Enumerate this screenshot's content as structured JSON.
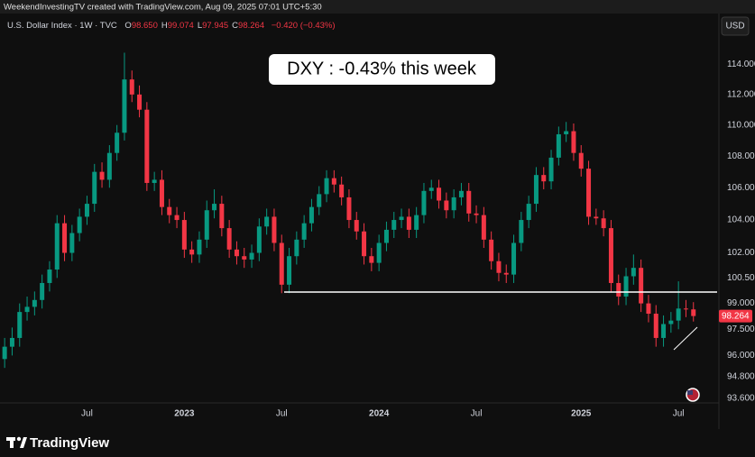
{
  "header": {
    "credit": "WeekendInvestingTV created with TradingView.com, Aug 09, 2025 07:01 UTC+5:30"
  },
  "legend": {
    "symbol": "U.S. Dollar Index · 1W · TVC",
    "ohlc": [
      {
        "label": "O",
        "value": "98.650"
      },
      {
        "label": "H",
        "value": "99.074"
      },
      {
        "label": "L",
        "value": "97.945"
      },
      {
        "label": "C",
        "value": "98.264"
      }
    ],
    "change": "−0.420 (−0.43%)"
  },
  "currency": "USD",
  "logo": "TradingView",
  "chart_data": {
    "type": "candlestick",
    "title": "DXY : -0.43% this week",
    "up_color": "#089981",
    "down_color": "#f23645",
    "log_scale": true,
    "grid": false,
    "ylim": [
      93.2,
      117.3
    ],
    "yticks": [
      {
        "value": 114,
        "label": "114.000"
      },
      {
        "value": 112,
        "label": "112.000"
      },
      {
        "value": 110,
        "label": "110.000"
      },
      {
        "value": 108,
        "label": "108.000"
      },
      {
        "value": 106,
        "label": "106.000"
      },
      {
        "value": 104,
        "label": "104.000"
      },
      {
        "value": 102,
        "label": "102.000"
      },
      {
        "value": 100.5,
        "label": "100.500"
      },
      {
        "value": 99,
        "label": "99.000"
      },
      {
        "value": 97.5,
        "label": "97.500"
      },
      {
        "value": 96,
        "label": "96.000"
      },
      {
        "value": 94.8,
        "label": "94.800"
      },
      {
        "value": 93.6,
        "label": "93.600"
      }
    ],
    "categories": [
      null,
      null,
      null,
      null,
      null,
      null,
      null,
      null,
      null,
      null,
      null,
      "Jul",
      null,
      null,
      null,
      null,
      null,
      null,
      null,
      null,
      null,
      null,
      null,
      null,
      "2023",
      null,
      null,
      null,
      null,
      null,
      null,
      null,
      null,
      null,
      null,
      null,
      null,
      "Jul",
      null,
      null,
      null,
      null,
      null,
      null,
      null,
      null,
      null,
      null,
      null,
      null,
      "2024",
      null,
      null,
      null,
      null,
      null,
      null,
      null,
      null,
      null,
      null,
      null,
      null,
      "Jul",
      null,
      null,
      null,
      null,
      null,
      null,
      null,
      null,
      null,
      null,
      null,
      null,
      null,
      "2025",
      null,
      null,
      null,
      null,
      null,
      null,
      null,
      null,
      null,
      null,
      null,
      null,
      "Jul",
      null,
      null
    ],
    "open": [
      95.8,
      96.5,
      97.0,
      98.5,
      98.8,
      99.2,
      100.2,
      101.0,
      103.8,
      102.0,
      103.2,
      104.2,
      105.0,
      107.0,
      106.5,
      108.2,
      109.5,
      113.0,
      112.0,
      111.0,
      106.3,
      106.5,
      104.8,
      104.3,
      104.0,
      102.2,
      101.9,
      102.8,
      104.6,
      105.0,
      103.5,
      102.2,
      101.8,
      101.6,
      102.0,
      103.6,
      104.2,
      102.6,
      100.1,
      101.8,
      102.8,
      103.8,
      104.8,
      105.6,
      106.6,
      106.2,
      105.4,
      104.0,
      103.3,
      101.8,
      101.4,
      102.6,
      103.4,
      104.0,
      104.2,
      103.4,
      104.3,
      105.8,
      106.0,
      105.2,
      104.6,
      105.4,
      105.8,
      104.4,
      104.3,
      102.8,
      101.5,
      100.8,
      100.7,
      102.6,
      104.0,
      105.0,
      106.8,
      106.4,
      107.9,
      109.4,
      109.6,
      108.2,
      107.2,
      104.2,
      104.1,
      103.5,
      100.2,
      99.4,
      100.6,
      101.1,
      99.0,
      98.4,
      97.0,
      97.8,
      98.0,
      98.7,
      98.65
    ],
    "high": [
      97.0,
      97.6,
      99.0,
      99.4,
      99.7,
      100.7,
      101.5,
      104.3,
      104.3,
      103.7,
      104.7,
      105.5,
      107.5,
      107.6,
      108.7,
      110.0,
      114.8,
      113.6,
      112.6,
      111.5,
      107.0,
      107.1,
      105.3,
      104.8,
      104.5,
      102.7,
      103.3,
      105.2,
      105.9,
      105.5,
      104.0,
      102.7,
      102.3,
      102.5,
      104.1,
      104.7,
      104.7,
      103.1,
      102.3,
      103.3,
      104.3,
      105.3,
      106.1,
      107.1,
      107.1,
      106.7,
      105.9,
      104.5,
      103.8,
      102.3,
      103.1,
      103.9,
      104.5,
      104.7,
      104.7,
      104.8,
      106.3,
      106.5,
      106.5,
      105.7,
      105.9,
      106.3,
      106.3,
      104.9,
      104.8,
      103.3,
      102.0,
      101.3,
      103.1,
      104.5,
      105.5,
      107.3,
      107.3,
      108.4,
      109.9,
      110.2,
      110.1,
      108.7,
      107.7,
      104.7,
      104.6,
      104.0,
      100.7,
      101.1,
      101.9,
      101.6,
      99.5,
      98.9,
      98.3,
      98.5,
      100.3,
      99.2,
      99.074
    ],
    "low": [
      95.3,
      96.0,
      96.5,
      98.0,
      98.3,
      98.7,
      99.7,
      100.5,
      101.5,
      101.5,
      102.7,
      103.7,
      104.5,
      106.0,
      106.0,
      107.7,
      109.0,
      111.5,
      110.5,
      105.8,
      105.8,
      104.3,
      103.8,
      103.5,
      101.7,
      101.4,
      101.4,
      102.3,
      104.1,
      103.0,
      101.7,
      101.3,
      101.1,
      101.1,
      101.5,
      103.1,
      102.1,
      99.6,
      99.6,
      101.3,
      102.3,
      103.3,
      104.3,
      105.1,
      105.7,
      104.9,
      103.5,
      102.8,
      101.3,
      100.9,
      100.9,
      102.1,
      102.9,
      103.5,
      102.9,
      102.9,
      103.8,
      105.3,
      104.7,
      104.1,
      104.1,
      104.9,
      103.9,
      103.8,
      102.3,
      101.0,
      100.3,
      100.2,
      100.2,
      102.1,
      103.5,
      104.5,
      105.9,
      105.9,
      107.4,
      108.9,
      107.7,
      106.7,
      103.7,
      103.7,
      103.0,
      99.7,
      98.9,
      98.9,
      100.1,
      98.5,
      97.9,
      96.5,
      96.5,
      97.3,
      97.5,
      98.2,
      97.945
    ],
    "close": [
      96.5,
      97.0,
      98.5,
      98.8,
      99.2,
      100.2,
      101.0,
      103.8,
      102.0,
      103.2,
      104.2,
      105.0,
      107.0,
      106.5,
      108.2,
      109.5,
      113.0,
      112.0,
      111.0,
      106.3,
      106.5,
      104.8,
      104.3,
      104.0,
      102.2,
      101.9,
      102.8,
      104.6,
      105.0,
      103.5,
      102.2,
      101.8,
      101.6,
      102.0,
      103.6,
      104.2,
      102.6,
      100.1,
      101.8,
      102.8,
      103.8,
      104.8,
      105.6,
      106.6,
      106.2,
      105.4,
      104.0,
      103.3,
      101.8,
      101.4,
      102.6,
      103.4,
      104.0,
      104.2,
      103.4,
      104.3,
      105.8,
      106.0,
      105.2,
      104.6,
      105.4,
      105.8,
      104.4,
      104.3,
      102.8,
      101.5,
      100.8,
      100.7,
      102.6,
      104.0,
      105.0,
      106.8,
      106.4,
      107.9,
      109.4,
      109.6,
      108.2,
      107.2,
      104.2,
      104.1,
      103.5,
      100.2,
      99.4,
      100.6,
      101.1,
      99.0,
      98.4,
      97.0,
      97.8,
      98.0,
      98.7,
      98.65,
      98.264
    ]
  }
}
